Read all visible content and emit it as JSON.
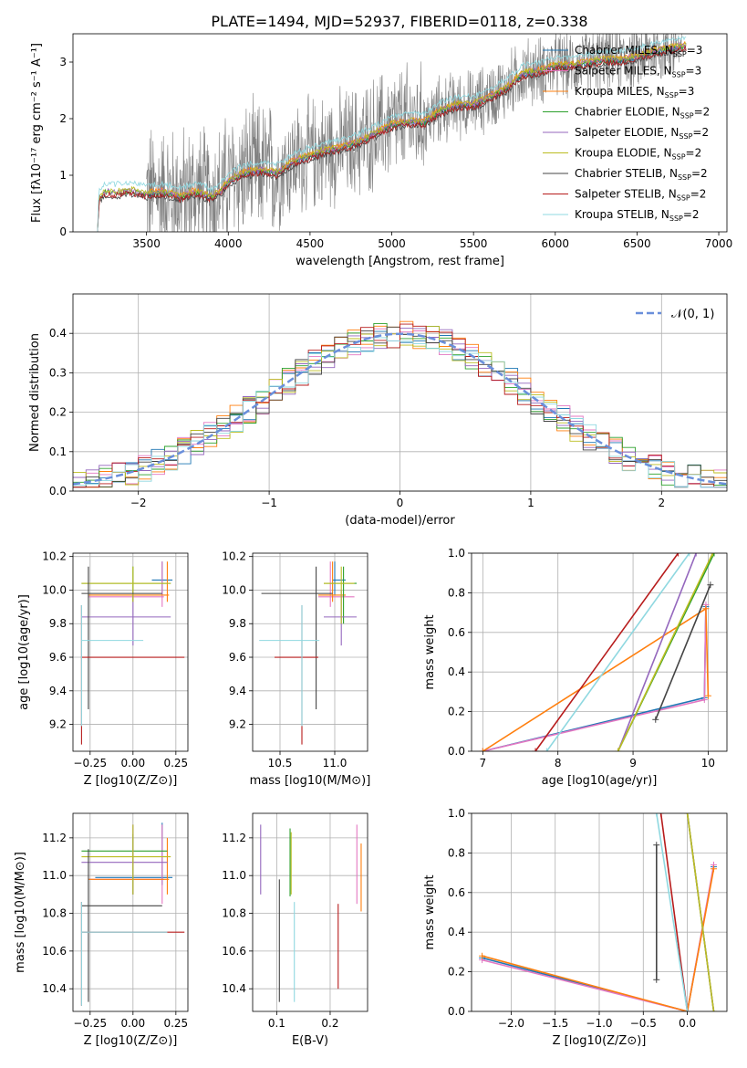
{
  "figure": {
    "title": "PLATE=1494, MJD=52937, FIBERID=0118, z=0.338"
  },
  "colors": {
    "Chabrier MILES": "#1f77b4",
    "Salpeter MILES": "#e377c2",
    "Kroupa MILES": "#ff7f0e",
    "Chabrier ELODIE": "#2ca02c",
    "Salpeter ELODIE": "#9467bd",
    "Kroupa ELODIE": "#bcbd22",
    "Chabrier STELIB": "#444444",
    "Salpeter STELIB": "#b71c1c",
    "Kroupa STELIB": "#8fd8e0",
    "data": "#808080",
    "normal": "#6a8fdb"
  },
  "chart_data": [
    {
      "id": "spectrum",
      "type": "line",
      "xlabel": "wavelength [Angstrom, rest frame]",
      "ylabel": "Flux [f$_\\lambda$10$^{-17}$ erg cm$^{-2}$ s$^{-1}$ A$^{-1}$]",
      "ylabel_display": "Flux [fλ10⁻¹⁷ erg cm⁻² s⁻¹ A⁻¹]",
      "xlim": [
        3050,
        7050
      ],
      "ylim": [
        0,
        3.5
      ],
      "xticks": [
        3500,
        4000,
        4500,
        5000,
        5500,
        6000,
        6500,
        7000
      ],
      "yticks": [
        0,
        1,
        2,
        3
      ],
      "legend_position": "right",
      "legend": [
        {
          "name": "Chabrier MILES",
          "n_ssp": "N$_{SSP}$=3",
          "label": "Chabrier MILES, N",
          "sub": "SSP",
          "suffix": "=3"
        },
        {
          "name": "Salpeter MILES",
          "label": "Salpeter MILES, N",
          "sub": "SSP",
          "suffix": "=3"
        },
        {
          "name": "Kroupa MILES",
          "label": "Kroupa MILES, N",
          "sub": "SSP",
          "suffix": "=3"
        },
        {
          "name": "Chabrier ELODIE",
          "label": "Chabrier ELODIE, N",
          "sub": "SSP",
          "suffix": "=2"
        },
        {
          "name": "Salpeter ELODIE",
          "label": "Salpeter ELODIE, N",
          "sub": "SSP",
          "suffix": "=2"
        },
        {
          "name": "Kroupa ELODIE",
          "label": "Kroupa ELODIE, N",
          "sub": "SSP",
          "suffix": "=2"
        },
        {
          "name": "Chabrier STELIB",
          "label": "Chabrier STELIB, N",
          "sub": "SSP",
          "suffix": "=2"
        },
        {
          "name": "Salpeter STELIB",
          "label": "Salpeter STELIB, N",
          "sub": "SSP",
          "suffix": "=2"
        },
        {
          "name": "Kroupa STELIB",
          "label": "Kroupa STELIB, N",
          "sub": "SSP",
          "suffix": "=2"
        }
      ],
      "model_continuum": [
        [
          3200,
          0.0
        ],
        [
          3210,
          0.62
        ],
        [
          3250,
          0.72
        ],
        [
          3300,
          0.7
        ],
        [
          3400,
          0.74
        ],
        [
          3500,
          0.68
        ],
        [
          3600,
          0.72
        ],
        [
          3700,
          0.63
        ],
        [
          3800,
          0.72
        ],
        [
          3900,
          0.62
        ],
        [
          3950,
          0.72
        ],
        [
          4000,
          0.9
        ],
        [
          4100,
          1.05
        ],
        [
          4200,
          1.1
        ],
        [
          4300,
          1.05
        ],
        [
          4400,
          1.25
        ],
        [
          4500,
          1.35
        ],
        [
          4600,
          1.45
        ],
        [
          4700,
          1.5
        ],
        [
          4800,
          1.6
        ],
        [
          4900,
          1.75
        ],
        [
          5000,
          1.9
        ],
        [
          5100,
          1.95
        ],
        [
          5200,
          1.95
        ],
        [
          5300,
          2.15
        ],
        [
          5400,
          2.25
        ],
        [
          5500,
          2.25
        ],
        [
          5600,
          2.4
        ],
        [
          5700,
          2.55
        ],
        [
          5800,
          2.8
        ],
        [
          5900,
          2.85
        ],
        [
          6000,
          2.95
        ],
        [
          6100,
          2.95
        ],
        [
          6200,
          3.0
        ],
        [
          6300,
          3.05
        ],
        [
          6400,
          3.05
        ],
        [
          6500,
          3.1
        ],
        [
          6600,
          3.2
        ],
        [
          6700,
          3.25
        ],
        [
          6800,
          3.3
        ]
      ]
    },
    {
      "id": "residuals",
      "type": "area",
      "xlabel": "(data-model)/error",
      "ylabel": "Normed distribution",
      "xlim": [
        -2.5,
        2.5
      ],
      "ylim": [
        0,
        0.5
      ],
      "xticks": [
        -2,
        -1,
        0,
        1,
        2
      ],
      "yticks": [
        0.0,
        0.1,
        0.2,
        0.3,
        0.4
      ],
      "grid": true,
      "legend": [
        {
          "name": "normal",
          "label": "𝒩(0, 1)"
        }
      ],
      "legend_position": "top-right"
    },
    {
      "id": "age_vs_Z",
      "type": "scatter",
      "xlabel": "Z [log10(Z/Z⊙)]",
      "ylabel": "age [log10(age/yr)]",
      "xlim": [
        -0.35,
        0.32
      ],
      "ylim": [
        9.04,
        10.22
      ],
      "xticks": [
        -0.25,
        0.0,
        0.25
      ],
      "xticklabels": [
        "−0.25",
        "0.00",
        "0.25"
      ],
      "yticks": [
        9.2,
        9.4,
        9.6,
        9.8,
        10.0,
        10.2
      ],
      "grid": true,
      "points": [
        {
          "m": "Chabrier MILES",
          "x": 0.17,
          "y": 10.06,
          "x_lo": 0.11,
          "x_hi": 0.23,
          "y_lo": 9.97,
          "y_hi": 10.17
        },
        {
          "m": "Salpeter MILES",
          "x": 0.17,
          "y": 9.96,
          "x_lo": -0.26,
          "x_hi": 0.18,
          "y_lo": 9.9,
          "y_hi": 10.17
        },
        {
          "m": "Kroupa MILES",
          "x": 0.2,
          "y": 9.97,
          "x_lo": -0.26,
          "x_hi": 0.21,
          "y_lo": 9.93,
          "y_hi": 10.17
        },
        {
          "m": "Chabrier ELODIE",
          "x": 0.0,
          "y": 10.04,
          "x_lo": -0.3,
          "x_hi": 0.22,
          "y_lo": 9.93,
          "y_hi": 10.14
        },
        {
          "m": "Salpeter ELODIE",
          "x": 0.0,
          "y": 9.84,
          "x_lo": -0.3,
          "x_hi": 0.22,
          "y_lo": 9.67,
          "y_hi": 10.0
        },
        {
          "m": "Kroupa ELODIE",
          "x": 0.0,
          "y": 10.04,
          "x_lo": -0.3,
          "x_hi": 0.22,
          "y_lo": 9.93,
          "y_hi": 10.14
        },
        {
          "m": "Chabrier STELIB",
          "x": -0.26,
          "y": 9.98,
          "x_lo": -0.3,
          "x_hi": 0.17,
          "y_lo": 9.29,
          "y_hi": 10.14
        },
        {
          "m": "Salpeter STELIB",
          "x": -0.3,
          "y": 9.6,
          "x_lo": -0.3,
          "x_hi": 0.3,
          "y_lo": 9.08,
          "y_hi": 9.91
        },
        {
          "m": "Kroupa STELIB",
          "x": -0.3,
          "y": 9.7,
          "x_lo": -0.3,
          "x_hi": 0.06,
          "y_lo": 9.19,
          "y_hi": 9.91
        }
      ]
    },
    {
      "id": "age_vs_mass",
      "type": "scatter",
      "xlabel": "mass [log10(M/M⊙)]",
      "ylabel": "",
      "xlim": [
        10.25,
        11.3
      ],
      "ylim": [
        9.04,
        10.22
      ],
      "xticks": [
        10.5,
        11.0
      ],
      "xticklabels": [
        "10.5",
        "11.0"
      ],
      "yticks": [
        9.2,
        9.4,
        9.6,
        9.8,
        10.0,
        10.2
      ],
      "grid": true,
      "points": [
        {
          "m": "Chabrier MILES",
          "x": 11.0,
          "y": 10.06,
          "x_lo": 10.98,
          "x_hi": 11.1,
          "y_lo": 9.97,
          "y_hi": 10.17
        },
        {
          "m": "Salpeter MILES",
          "x": 10.96,
          "y": 9.96,
          "x_lo": 10.85,
          "x_hi": 11.18,
          "y_lo": 9.9,
          "y_hi": 10.17
        },
        {
          "m": "Kroupa MILES",
          "x": 10.98,
          "y": 9.97,
          "x_lo": 10.85,
          "x_hi": 11.1,
          "y_lo": 9.93,
          "y_hi": 10.17
        },
        {
          "m": "Chabrier ELODIE",
          "x": 11.08,
          "y": 10.04,
          "x_lo": 10.9,
          "x_hi": 11.2,
          "y_lo": 9.8,
          "y_hi": 10.14
        },
        {
          "m": "Salpeter ELODIE",
          "x": 11.06,
          "y": 9.84,
          "x_lo": 10.9,
          "x_hi": 11.2,
          "y_lo": 9.67,
          "y_hi": 10.0
        },
        {
          "m": "Kroupa ELODIE",
          "x": 11.06,
          "y": 10.04,
          "x_lo": 10.9,
          "x_hi": 11.18,
          "y_lo": 9.8,
          "y_hi": 10.14
        },
        {
          "m": "Chabrier STELIB",
          "x": 10.83,
          "y": 9.98,
          "x_lo": 10.33,
          "x_hi": 10.98,
          "y_lo": 9.29,
          "y_hi": 10.14
        },
        {
          "m": "Salpeter STELIB",
          "x": 10.7,
          "y": 9.6,
          "x_lo": 10.45,
          "x_hi": 10.85,
          "y_lo": 9.08,
          "y_hi": 9.91
        },
        {
          "m": "Kroupa STELIB",
          "x": 10.7,
          "y": 9.7,
          "x_lo": 10.31,
          "x_hi": 10.86,
          "y_lo": 9.19,
          "y_hi": 9.91
        }
      ]
    },
    {
      "id": "weight_vs_age",
      "type": "line",
      "xlabel": "age [log10(age/yr)]",
      "ylabel": "mass weight",
      "xlim": [
        6.85,
        10.25
      ],
      "ylim": [
        0,
        1.0
      ],
      "xticks": [
        7,
        8,
        9,
        10
      ],
      "yticks": [
        0.0,
        0.2,
        0.4,
        0.6,
        0.8,
        1.0
      ],
      "grid": true,
      "series": [
        {
          "m": "Chabrier MILES",
          "x": [
            7.0,
            9.95,
            9.97
          ],
          "y": [
            0.0,
            0.27,
            0.73
          ]
        },
        {
          "m": "Salpeter MILES",
          "x": [
            7.0,
            9.95,
            9.97
          ],
          "y": [
            0.0,
            0.26,
            0.74
          ]
        },
        {
          "m": "Kroupa MILES",
          "x": [
            7.0,
            9.97,
            10.0
          ],
          "y": [
            0.0,
            0.72,
            0.28
          ]
        },
        {
          "m": "Chabrier ELODIE",
          "x": [
            8.8,
            10.08
          ],
          "y": [
            0.0,
            1.0
          ]
        },
        {
          "m": "Salpeter ELODIE",
          "x": [
            8.8,
            9.84
          ],
          "y": [
            0.0,
            1.0
          ]
        },
        {
          "m": "Kroupa ELODIE",
          "x": [
            8.8,
            10.06
          ],
          "y": [
            0.0,
            1.0
          ]
        },
        {
          "m": "Chabrier STELIB",
          "x": [
            9.3,
            10.03
          ],
          "y": [
            0.16,
            0.84
          ]
        },
        {
          "m": "Salpeter STELIB",
          "x": [
            7.7,
            9.6
          ],
          "y": [
            0.0,
            1.0
          ]
        },
        {
          "m": "Kroupa STELIB",
          "x": [
            7.85,
            9.75
          ],
          "y": [
            0.0,
            1.0
          ]
        }
      ]
    },
    {
      "id": "mass_vs_Z",
      "type": "scatter",
      "xlabel": "Z [log10(Z/Z⊙)]",
      "ylabel": "mass [log10(M/M⊙)]",
      "xlim": [
        -0.35,
        0.32
      ],
      "ylim": [
        10.28,
        11.33
      ],
      "xticks": [
        -0.25,
        0.0,
        0.25
      ],
      "xticklabels": [
        "−0.25",
        "0.00",
        "0.25"
      ],
      "yticks": [
        10.4,
        10.6,
        10.8,
        11.0,
        11.2
      ],
      "grid": true,
      "points": [
        {
          "m": "Chabrier MILES",
          "x": 0.17,
          "y": 10.99,
          "x_lo": -0.22,
          "x_hi": 0.23,
          "y_lo": 10.95,
          "y_hi": 11.28
        },
        {
          "m": "Salpeter MILES",
          "x": 0.17,
          "y": 10.98,
          "x_lo": -0.26,
          "x_hi": 0.18,
          "y_lo": 10.85,
          "y_hi": 11.27
        },
        {
          "m": "Kroupa MILES",
          "x": 0.2,
          "y": 10.98,
          "x_lo": -0.26,
          "x_hi": 0.21,
          "y_lo": 10.9,
          "y_hi": 11.2
        },
        {
          "m": "Chabrier ELODIE",
          "x": 0.0,
          "y": 11.13,
          "x_lo": -0.3,
          "x_hi": 0.2,
          "y_lo": 10.9,
          "y_hi": 11.22
        },
        {
          "m": "Salpeter ELODIE",
          "x": 0.0,
          "y": 11.07,
          "x_lo": -0.3,
          "x_hi": 0.2,
          "y_lo": 10.9,
          "y_hi": 11.27
        },
        {
          "m": "Kroupa ELODIE",
          "x": 0.0,
          "y": 11.1,
          "x_lo": -0.3,
          "x_hi": 0.22,
          "y_lo": 10.9,
          "y_hi": 11.27
        },
        {
          "m": "Chabrier STELIB",
          "x": -0.26,
          "y": 10.84,
          "x_lo": -0.3,
          "x_hi": 0.17,
          "y_lo": 10.33,
          "y_hi": 11.14
        },
        {
          "m": "Salpeter STELIB",
          "x": -0.3,
          "y": 10.7,
          "x_lo": -0.3,
          "x_hi": 0.3,
          "y_lo": 10.31,
          "y_hi": 10.86
        },
        {
          "m": "Kroupa STELIB",
          "x": -0.3,
          "y": 10.7,
          "x_lo": -0.3,
          "x_hi": 0.2,
          "y_lo": 10.31,
          "y_hi": 10.86
        }
      ]
    },
    {
      "id": "mass_vs_ebv",
      "type": "scatter",
      "xlabel": "E(B-V)",
      "ylabel": "",
      "xlim": [
        0.055,
        0.27
      ],
      "ylim": [
        10.28,
        11.33
      ],
      "xticks": [
        0.1,
        0.2
      ],
      "xticklabels": [
        "0.1",
        "0.2"
      ],
      "yticks": [
        10.4,
        10.6,
        10.8,
        11.0,
        11.2
      ],
      "grid": true,
      "points": [
        {
          "m": "Salpeter ELODIE",
          "x": 0.07,
          "y_lo": 10.9,
          "y_hi": 11.27
        },
        {
          "m": "Chabrier ELODIE",
          "x": 0.125,
          "y_lo": 10.89,
          "y_hi": 11.25
        },
        {
          "m": "Kroupa ELODIE",
          "x": 0.127,
          "y_lo": 10.9,
          "y_hi": 11.23
        },
        {
          "m": "Chabrier STELIB",
          "x": 0.105,
          "y_lo": 10.33,
          "y_hi": 10.98
        },
        {
          "m": "Kroupa STELIB",
          "x": 0.133,
          "y_lo": 10.33,
          "y_hi": 10.86
        },
        {
          "m": "Salpeter STELIB",
          "x": 0.215,
          "y_lo": 10.4,
          "y_hi": 10.85
        },
        {
          "m": "Salpeter MILES",
          "x": 0.25,
          "y_lo": 10.85,
          "y_hi": 11.27
        },
        {
          "m": "Kroupa MILES",
          "x": 0.258,
          "y_lo": 10.81,
          "y_hi": 11.17
        }
      ]
    },
    {
      "id": "weight_vs_Z",
      "type": "line",
      "xlabel": "Z [log10(Z/Z⊙)]",
      "ylabel": "mass weight",
      "xlim": [
        -2.45,
        0.45
      ],
      "ylim": [
        0,
        1.0
      ],
      "xticks": [
        -2.0,
        -1.5,
        -1.0,
        -0.5,
        0.0
      ],
      "xticklabels": [
        "−2.0",
        "−1.5",
        "−1.0",
        "−0.5",
        "0.0"
      ],
      "yticks": [
        0.0,
        0.2,
        0.4,
        0.6,
        0.8,
        1.0
      ],
      "grid": true,
      "series": [
        {
          "m": "Chabrier MILES",
          "x": [
            -2.33,
            0.0,
            0.3
          ],
          "y": [
            0.27,
            0.0,
            0.73
          ]
        },
        {
          "m": "Salpeter MILES",
          "x": [
            -2.33,
            0.0,
            0.3
          ],
          "y": [
            0.26,
            0.0,
            0.74
          ]
        },
        {
          "m": "Kroupa MILES",
          "x": [
            -2.33,
            0.0,
            0.3
          ],
          "y": [
            0.28,
            0.0,
            0.72
          ]
        },
        {
          "m": "Chabrier ELODIE",
          "x": [
            0.0,
            0.3
          ],
          "y": [
            1.0,
            0.0
          ]
        },
        {
          "m": "Salpeter ELODIE",
          "x": [
            0.0,
            0.3
          ],
          "y": [
            1.0,
            0.0
          ]
        },
        {
          "m": "Kroupa ELODIE",
          "x": [
            0.0,
            0.3
          ],
          "y": [
            1.0,
            0.0
          ]
        },
        {
          "m": "Chabrier STELIB",
          "x": [
            -0.35,
            -0.35
          ],
          "y": [
            0.16,
            0.84
          ]
        },
        {
          "m": "Salpeter STELIB",
          "x": [
            -0.3,
            0.0
          ],
          "y": [
            1.0,
            0.0
          ]
        },
        {
          "m": "Kroupa STELIB",
          "x": [
            -0.35,
            0.0
          ],
          "y": [
            1.0,
            0.0
          ]
        }
      ]
    }
  ]
}
